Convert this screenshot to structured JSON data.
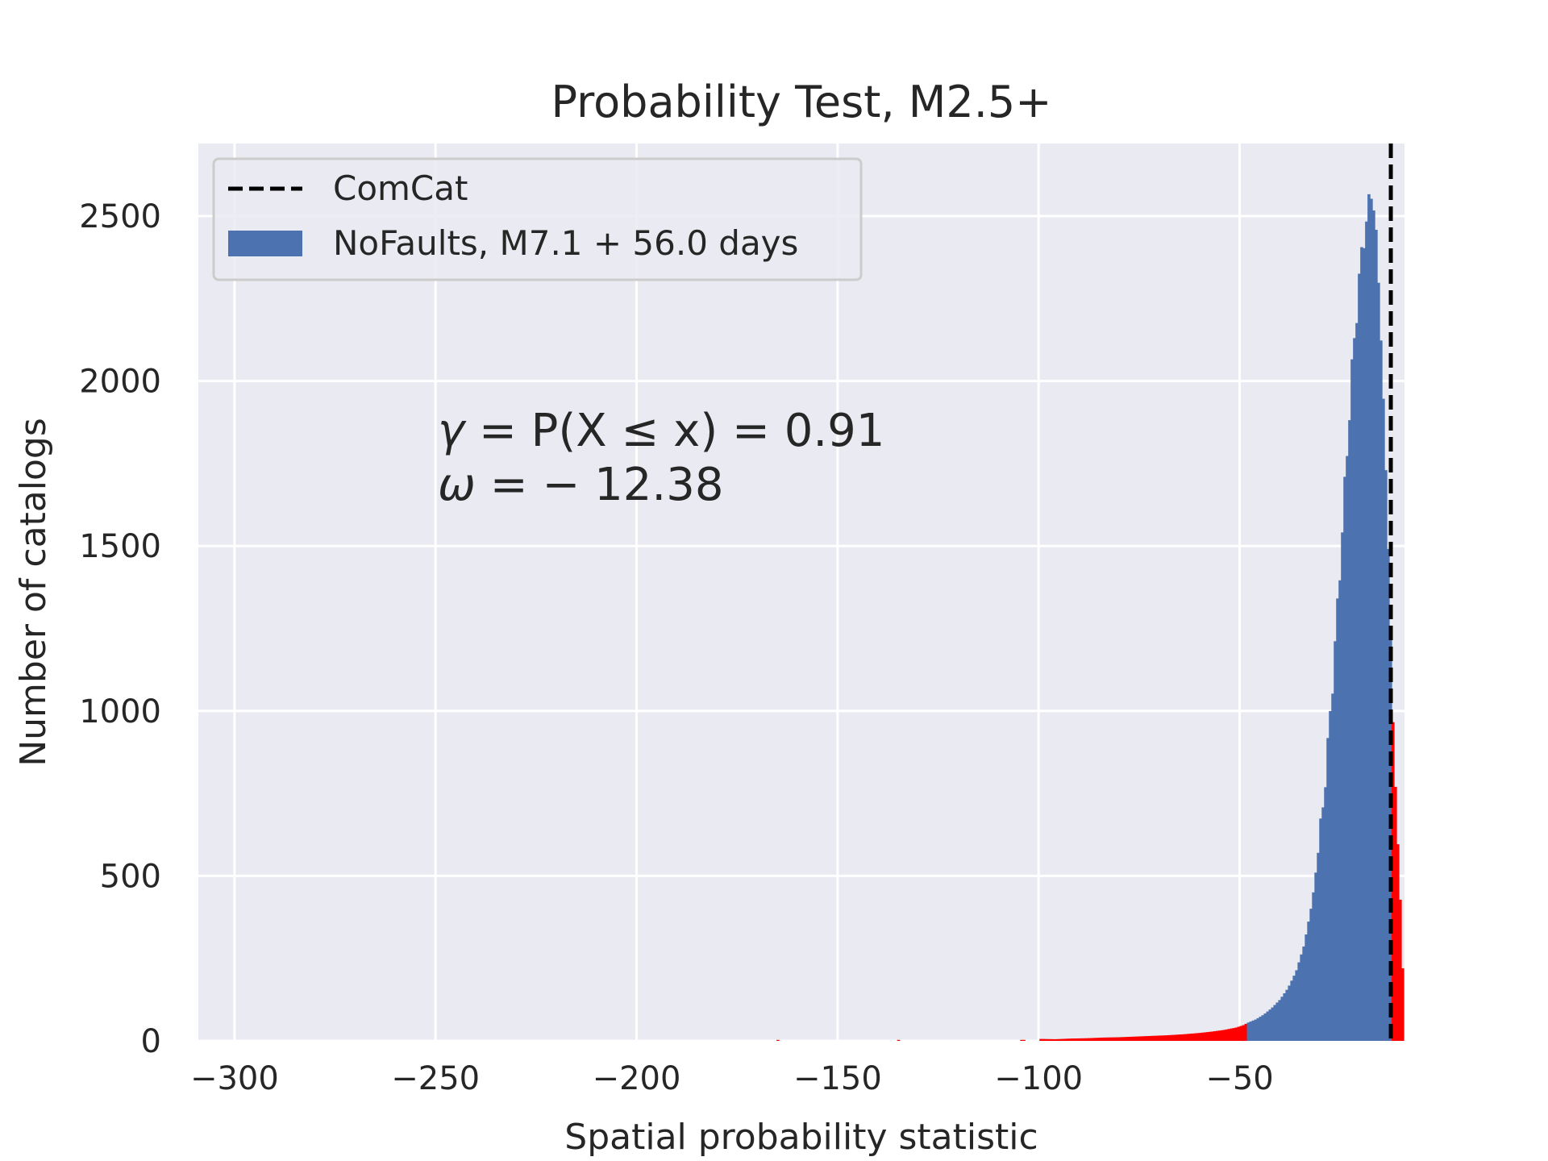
{
  "chart_data": {
    "type": "bar",
    "title": "Probability Test, M2.5+",
    "xlabel": "Spatial probability statistic",
    "ylabel": "Number of catalogs",
    "xlim": [
      -309,
      -9
    ],
    "ylim": [
      0,
      2720
    ],
    "xticks": [
      -300,
      -250,
      -200,
      -150,
      -100,
      -50
    ],
    "xtick_labels": [
      "−300",
      "−250",
      "−200",
      "−150",
      "−100",
      "−50"
    ],
    "yticks": [
      0,
      500,
      1000,
      1500,
      2000,
      2500
    ],
    "ytick_labels": [
      "0",
      "500",
      "1000",
      "1500",
      "2000",
      "2500"
    ],
    "grid": true,
    "legend_position": "top-left",
    "colors": {
      "background": "#eaeaf2",
      "histogram": "#4c72b0",
      "tail": "#ff0000",
      "observation": "#000000",
      "grid": "#ffffff"
    },
    "observed_line": {
      "name": "ComCat",
      "x": -12.4,
      "style": "dashed"
    },
    "histogram": {
      "name": "NoFaults, M7.1 + 56.0 days",
      "bin_width": 0.6,
      "blue_range": [
        -48,
        -12.4
      ],
      "bins": [
        [
          -165,
          3
        ],
        [
          -135,
          3
        ],
        [
          -104,
          3
        ],
        [
          -100,
          6
        ],
        [
          -96,
          5
        ],
        [
          -92,
          7
        ],
        [
          -88,
          8
        ],
        [
          -84,
          10
        ],
        [
          -80,
          11
        ],
        [
          -76,
          13
        ],
        [
          -72,
          15
        ],
        [
          -68,
          17
        ],
        [
          -64,
          20
        ],
        [
          -60,
          24
        ],
        [
          -57,
          28
        ],
        [
          -54,
          33
        ],
        [
          -51,
          40
        ],
        [
          -49,
          48
        ],
        [
          -48,
          55
        ],
        [
          -46,
          65
        ],
        [
          -44,
          80
        ],
        [
          -42,
          100
        ],
        [
          -40,
          125
        ],
        [
          -38,
          160
        ],
        [
          -36,
          210
        ],
        [
          -34,
          290
        ],
        [
          -32,
          420
        ],
        [
          -30,
          620
        ],
        [
          -28,
          900
        ],
        [
          -26,
          1250
        ],
        [
          -24,
          1650
        ],
        [
          -22,
          2050
        ],
        [
          -20,
          2350
        ],
        [
          -19,
          2450
        ],
        [
          -18,
          2520
        ],
        [
          -17,
          2600
        ],
        [
          -16,
          2400
        ],
        [
          -15,
          2200
        ],
        [
          -14,
          1800
        ],
        [
          -13,
          1500
        ],
        [
          -12.4,
          1200
        ],
        [
          -12,
          1000
        ],
        [
          -11.5,
          830
        ],
        [
          -11,
          680
        ],
        [
          -10.5,
          540
        ],
        [
          -10,
          400
        ],
        [
          -9.5,
          220
        ],
        [
          -9,
          80
        ]
      ]
    },
    "annotations": [
      {
        "gamma_symbol": "γ",
        "gamma_rhs": "= P(X ≤ x) = 0.91"
      },
      {
        "omega_symbol": "ω",
        "omega_rhs": "= − 12.38"
      }
    ]
  }
}
